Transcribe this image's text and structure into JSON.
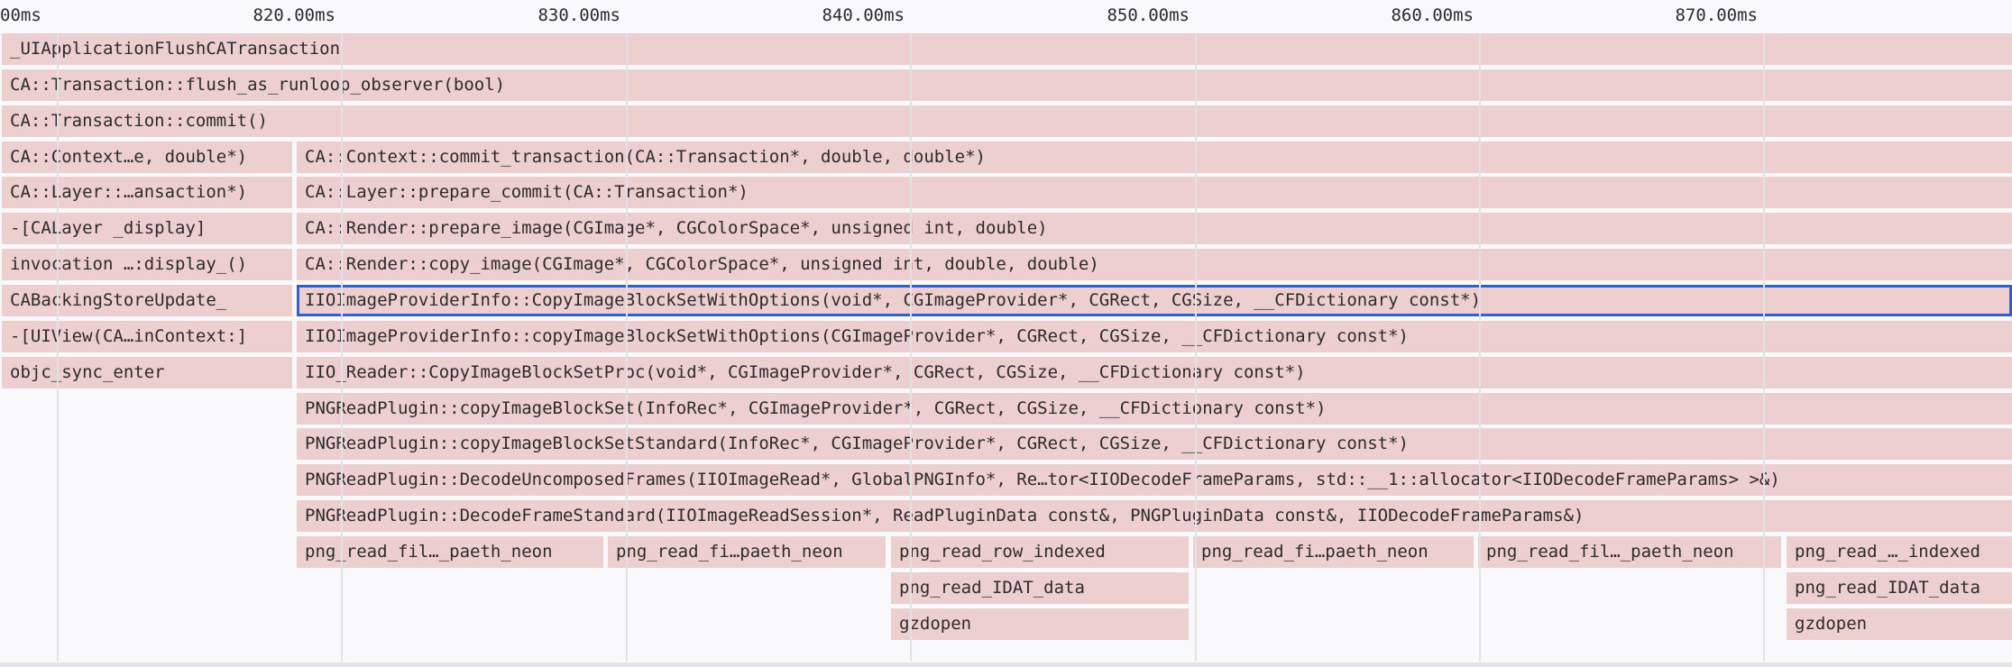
{
  "ruler": {
    "ticks": [
      "00ms",
      "820.00ms",
      "830.00ms",
      "840.00ms",
      "850.00ms",
      "860.00ms",
      "870.00ms"
    ]
  },
  "selected_frame": "IIOImageProviderInfo::CopyImageBlockSetWithOptions(void*, CGImageProvider*, CGRect, CGSize, __CFDictionary const*)",
  "colors": {
    "frame": "#eecfd0",
    "selection": "#2f5fd0",
    "grid": "#e2e2e6"
  },
  "frames": [
    "_UIApplicationFlushCATransaction",
    "CA::Transaction::flush_as_runloop_observer(bool)",
    "CA::Transaction::commit()",
    "CA::Context…e, double*)",
    "CA::Context::commit_transaction(CA::Transaction*, double, double*)",
    "CA::Layer::…ansaction*)",
    "CA::Layer::prepare_commit(CA::Transaction*)",
    "-[CALayer _display]",
    "CA::Render::prepare_image(CGImage*, CGColorSpace*, unsigned int, double)",
    "invocation …:display_()",
    "CA::Render::copy_image(CGImage*, CGColorSpace*, unsigned int, double, double)",
    "CABackingStoreUpdate_",
    "IIOImageProviderInfo::CopyImageBlockSetWithOptions(void*, CGImageProvider*, CGRect, CGSize, __CFDictionary const*)",
    "-[UIView(CA…inContext:]",
    "IIOImageProviderInfo::copyImageBlockSetWithOptions(CGImageProvider*, CGRect, CGSize, __CFDictionary const*)",
    "objc_sync_enter",
    "IIO_Reader::CopyImageBlockSetProc(void*, CGImageProvider*, CGRect, CGSize, __CFDictionary const*)",
    "PNGReadPlugin::copyImageBlockSet(InfoRec*, CGImageProvider*, CGRect, CGSize, __CFDictionary const*)",
    "PNGReadPlugin::copyImageBlockSetStandard(InfoRec*, CGImageProvider*, CGRect, CGSize, __CFDictionary const*)",
    "PNGReadPlugin::DecodeUncomposedFrames(IIOImageRead*, GlobalPNGInfo*, Re…tor<IIODecodeFrameParams, std::__1::allocator<IIODecodeFrameParams> >&)",
    "PNGReadPlugin::DecodeFrameStandard(IIOImageReadSession*, ReadPluginData const&, PNGPluginData const&, IIODecodeFrameParams&)",
    "png_read_fil…_paeth_neon",
    "png_read_fi…paeth_neon",
    "png_read_row_indexed",
    "png_read_fi…paeth_neon",
    "png_read_fil…_paeth_neon",
    "png_read_…_indexed",
    "png_read_IDAT_data",
    "png_read_IDAT_data",
    "gzdopen",
    "gzdopen"
  ]
}
